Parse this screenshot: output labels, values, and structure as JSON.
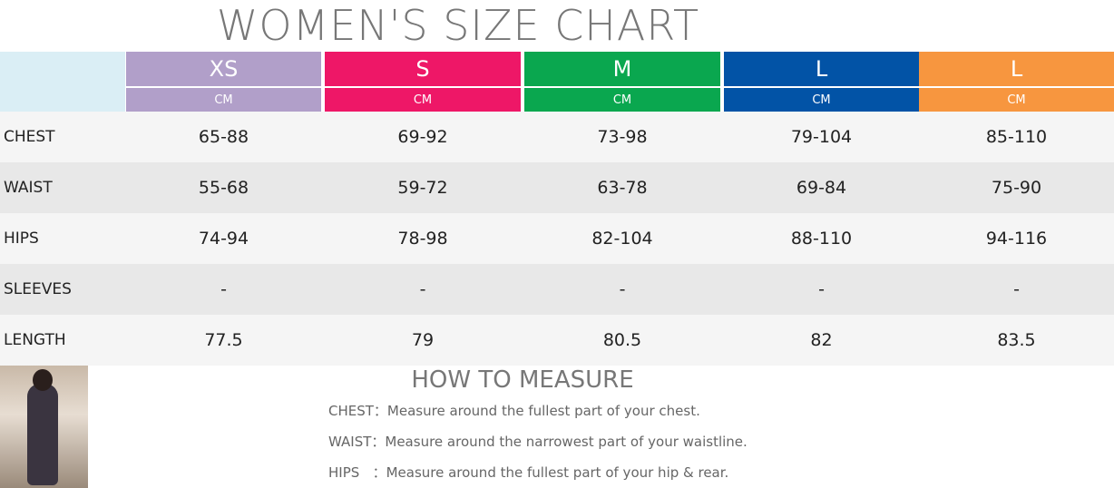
{
  "title": "WOMEN'S SIZE CHART",
  "table": {
    "sizes": [
      {
        "name": "XS",
        "unit": "CM",
        "color": "#b19fc9"
      },
      {
        "name": "S",
        "unit": "CM",
        "color": "#ee1767"
      },
      {
        "name": "M",
        "unit": "CM",
        "color": "#0aa74f"
      },
      {
        "name": "L",
        "unit": "CM",
        "color": "#0253a6"
      },
      {
        "name": "L",
        "unit": "CM",
        "color": "#f7963f"
      }
    ],
    "rows": [
      {
        "label": "CHEST",
        "values": [
          "65-88",
          "69-92",
          "73-98",
          "79-104",
          "85-110"
        ]
      },
      {
        "label": "WAIST",
        "values": [
          "55-68",
          "59-72",
          "63-78",
          "69-84",
          "75-90"
        ]
      },
      {
        "label": "HIPS",
        "values": [
          "74-94",
          "78-98",
          "82-104",
          "88-110",
          "94-116"
        ]
      },
      {
        "label": "SLEEVES",
        "values": [
          "-",
          "-",
          "-",
          "-",
          "-"
        ]
      },
      {
        "label": "LENGTH",
        "values": [
          "77.5",
          "79",
          "80.5",
          "82",
          "83.5"
        ]
      }
    ]
  },
  "how_to_measure": {
    "title": "HOW TO MEASURE",
    "items": [
      {
        "label": "CHEST：",
        "text": "Measure around the fullest part of your chest."
      },
      {
        "label": "WAIST：",
        "text": "Measure around the narrowest part of your waistline."
      },
      {
        "label": "HIPS   ：",
        "text": "Measure around the fullest part of your hip & rear."
      }
    ]
  }
}
